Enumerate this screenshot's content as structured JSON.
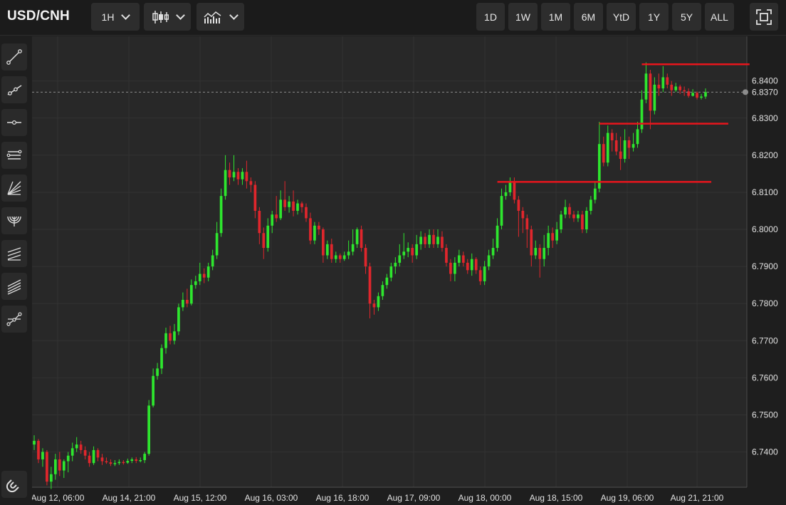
{
  "header": {
    "symbol": "USD/CNH",
    "interval_label": "1H",
    "chart_style_icon": "candlestick-icon",
    "indicators_icon": "indicators-icon",
    "ranges": [
      "1D",
      "1W",
      "1M",
      "6M",
      "YtD",
      "1Y",
      "5Y",
      "ALL"
    ],
    "fullscreen_icon": "fullscreen-icon"
  },
  "toolbar": {
    "tools": [
      {
        "name": "trend-line-icon"
      },
      {
        "name": "ray-icon"
      },
      {
        "name": "horizontal-line-icon"
      },
      {
        "name": "parallel-channel-icon"
      },
      {
        "name": "fan-icon"
      },
      {
        "name": "arc-icon"
      },
      {
        "name": "pitchfork-icon"
      },
      {
        "name": "regression-channel-icon"
      },
      {
        "name": "polyline-icon"
      }
    ],
    "magnet_icon": "magnet-icon"
  },
  "colors": {
    "up": "#2ee62e",
    "down": "#e0262c",
    "level_line": "#e8151c",
    "grid": "#323232",
    "background": "#282828",
    "axis_text": "#e0e0e0",
    "last_price_line": "#8a8a8a"
  },
  "chart_data": {
    "type": "candlestick",
    "title": "USD/CNH",
    "y_ticks": [
      "6.8400",
      "6.8300",
      "6.8200",
      "6.8100",
      "6.8000",
      "6.7900",
      "6.7800",
      "6.7700",
      "6.7600",
      "6.7500",
      "6.7400"
    ],
    "y_range": [
      6.7305,
      6.8505
    ],
    "x_ticks": [
      "Aug 12, 06:00",
      "Aug 14, 21:00",
      "Aug 15, 12:00",
      "Aug 16, 03:00",
      "Aug 16, 18:00",
      "Aug 17, 09:00",
      "Aug 18, 00:00",
      "Aug 18, 15:00",
      "Aug 19, 06:00",
      "Aug 21, 21:00"
    ],
    "last_price": "6.8370",
    "last_price_value": 6.837,
    "horizontal_levels": [
      {
        "value": 6.8445,
        "from_candle": 143,
        "to_candle": 165
      },
      {
        "value": 6.8285,
        "from_candle": 133,
        "to_candle": 160
      },
      {
        "value": 6.8128,
        "from_candle": 109,
        "to_candle": 156
      }
    ],
    "candles": [
      [
        6.742,
        6.743,
        6.7445,
        6.7405
      ],
      [
        6.743,
        6.738,
        6.7435,
        6.737
      ],
      [
        6.738,
        6.74,
        6.741,
        6.736
      ],
      [
        6.74,
        6.732,
        6.7405,
        6.731
      ],
      [
        6.732,
        6.734,
        6.736,
        6.73
      ],
      [
        6.734,
        6.738,
        6.7395,
        6.7325
      ],
      [
        6.738,
        6.735,
        6.74,
        6.7335
      ],
      [
        6.735,
        6.7375,
        6.738,
        6.733
      ],
      [
        6.7375,
        6.739,
        6.74,
        6.7345
      ],
      [
        6.739,
        6.741,
        6.7425,
        6.7375
      ],
      [
        6.741,
        6.742,
        6.744,
        6.74
      ],
      [
        6.742,
        6.7405,
        6.743,
        6.7395
      ],
      [
        6.7405,
        6.739,
        6.7415,
        6.738
      ],
      [
        6.739,
        6.737,
        6.74,
        6.736
      ],
      [
        6.737,
        6.7405,
        6.7415,
        6.7365
      ],
      [
        6.7405,
        6.7385,
        6.741,
        6.7375
      ],
      [
        6.7385,
        6.7375,
        6.7395,
        6.7365
      ],
      [
        6.7375,
        6.7372,
        6.7385,
        6.7368
      ],
      [
        6.7372,
        6.7368,
        6.738,
        6.7362
      ],
      [
        6.7368,
        6.737,
        6.7378,
        6.7362
      ],
      [
        6.737,
        6.7373,
        6.738,
        6.7365
      ],
      [
        6.7373,
        6.7371,
        6.7378,
        6.7366
      ],
      [
        6.7371,
        6.7376,
        6.7382,
        6.7368
      ],
      [
        6.7376,
        6.738,
        6.7385,
        6.737
      ],
      [
        6.738,
        6.7376,
        6.7386,
        6.737
      ],
      [
        6.7376,
        6.7378,
        6.7385,
        6.7372
      ],
      [
        6.7378,
        6.7395,
        6.74,
        6.737
      ],
      [
        6.7395,
        6.7525,
        6.754,
        6.739
      ],
      [
        6.7525,
        6.7605,
        6.7625,
        6.752
      ],
      [
        6.7605,
        6.7625,
        6.764,
        6.7595
      ],
      [
        6.7625,
        6.768,
        6.769,
        6.761
      ],
      [
        6.768,
        6.772,
        6.7735,
        6.7665
      ],
      [
        6.772,
        6.77,
        6.774,
        6.769
      ],
      [
        6.77,
        6.7725,
        6.7745,
        6.769
      ],
      [
        6.7725,
        6.779,
        6.78,
        6.7715
      ],
      [
        6.779,
        6.781,
        6.783,
        6.778
      ],
      [
        6.781,
        6.78,
        6.784,
        6.779
      ],
      [
        6.78,
        6.785,
        6.7865,
        6.7795
      ],
      [
        6.785,
        6.786,
        6.7875,
        6.784
      ],
      [
        6.786,
        6.788,
        6.791,
        6.785
      ],
      [
        6.788,
        6.787,
        6.7895,
        6.7855
      ],
      [
        6.787,
        6.79,
        6.791,
        6.786
      ],
      [
        6.79,
        6.793,
        6.7945,
        6.789
      ],
      [
        6.793,
        6.799,
        6.802,
        6.792
      ],
      [
        6.799,
        6.809,
        6.811,
        6.798
      ],
      [
        6.809,
        6.816,
        6.82,
        6.808
      ],
      [
        6.816,
        6.814,
        6.818,
        6.812
      ],
      [
        6.814,
        6.8155,
        6.82,
        6.813
      ],
      [
        6.8155,
        6.8135,
        6.8165,
        6.812
      ],
      [
        6.8135,
        6.8155,
        6.8165,
        6.812
      ],
      [
        6.8155,
        6.813,
        6.8185,
        6.811
      ],
      [
        6.813,
        6.812,
        6.814,
        6.81
      ],
      [
        6.812,
        6.805,
        6.813,
        6.803
      ],
      [
        6.805,
        6.799,
        6.806,
        6.796
      ],
      [
        6.799,
        6.795,
        6.8005,
        6.792
      ],
      [
        6.795,
        6.801,
        6.803,
        6.794
      ],
      [
        6.801,
        6.804,
        6.805,
        6.799
      ],
      [
        6.804,
        6.803,
        6.809,
        6.802
      ],
      [
        6.803,
        6.808,
        6.8105,
        6.8025
      ],
      [
        6.808,
        6.806,
        6.813,
        6.805
      ],
      [
        6.806,
        6.8075,
        6.809,
        6.8045
      ],
      [
        6.8075,
        6.805,
        6.8105,
        6.8035
      ],
      [
        6.805,
        6.807,
        6.808,
        6.804
      ],
      [
        6.807,
        6.806,
        6.8075,
        6.8045
      ],
      [
        6.806,
        6.803,
        6.807,
        6.802
      ],
      [
        6.803,
        6.797,
        6.8045,
        6.796
      ],
      [
        6.797,
        6.801,
        6.802,
        6.796
      ],
      [
        6.801,
        6.8,
        6.802,
        6.7985
      ],
      [
        6.8,
        6.793,
        6.8005,
        6.791
      ],
      [
        6.793,
        6.796,
        6.797,
        6.792
      ],
      [
        6.796,
        6.792,
        6.7975,
        6.791
      ],
      [
        6.792,
        6.793,
        6.794,
        6.791
      ],
      [
        6.793,
        6.792,
        6.7935,
        6.791
      ],
      [
        6.792,
        6.793,
        6.794,
        6.7915
      ],
      [
        6.793,
        6.794,
        6.797,
        6.792
      ],
      [
        6.794,
        6.796,
        6.8,
        6.793
      ],
      [
        6.796,
        6.8,
        6.8005,
        6.795
      ],
      [
        6.8,
        6.795,
        6.801,
        6.794
      ],
      [
        6.795,
        6.79,
        6.796,
        6.788
      ],
      [
        6.79,
        6.78,
        6.791,
        6.776
      ],
      [
        6.78,
        6.779,
        6.781,
        6.777
      ],
      [
        6.779,
        6.782,
        6.783,
        6.778
      ],
      [
        6.782,
        6.785,
        6.786,
        6.781
      ],
      [
        6.785,
        6.787,
        6.788,
        6.784
      ],
      [
        6.787,
        6.79,
        6.791,
        6.786
      ],
      [
        6.79,
        6.791,
        6.7925,
        6.788
      ],
      [
        6.791,
        6.793,
        6.796,
        6.79
      ],
      [
        6.793,
        6.794,
        6.799,
        6.792
      ],
      [
        6.794,
        6.795,
        6.7965,
        6.7925
      ],
      [
        6.795,
        6.793,
        6.796,
        6.791
      ],
      [
        6.793,
        6.796,
        6.7985,
        6.792
      ],
      [
        6.796,
        6.798,
        6.7995,
        6.7945
      ],
      [
        6.798,
        6.796,
        6.799,
        6.795
      ],
      [
        6.796,
        6.7985,
        6.8,
        6.795
      ],
      [
        6.7985,
        6.796,
        6.8,
        6.795
      ],
      [
        6.796,
        6.798,
        6.8,
        6.795
      ],
      [
        6.798,
        6.795,
        6.7995,
        6.794
      ],
      [
        6.795,
        6.791,
        6.796,
        6.79
      ],
      [
        6.791,
        6.788,
        6.792,
        6.786
      ],
      [
        6.788,
        6.791,
        6.7925,
        6.786
      ],
      [
        6.791,
        6.793,
        6.7945,
        6.79
      ],
      [
        6.793,
        6.791,
        6.794,
        6.79
      ],
      [
        6.791,
        6.789,
        6.792,
        6.788
      ],
      [
        6.789,
        6.792,
        6.7935,
        6.7875
      ],
      [
        6.792,
        6.789,
        6.7925,
        6.788
      ],
      [
        6.789,
        6.786,
        6.79,
        6.785
      ],
      [
        6.786,
        6.79,
        6.7915,
        6.785
      ],
      [
        6.79,
        6.793,
        6.7945,
        6.789
      ],
      [
        6.793,
        6.795,
        6.7975,
        6.792
      ],
      [
        6.795,
        6.801,
        6.803,
        6.794
      ],
      [
        6.801,
        6.809,
        6.811,
        6.8
      ],
      [
        6.809,
        6.81,
        6.812,
        6.808
      ],
      [
        6.81,
        6.813,
        6.814,
        6.809
      ],
      [
        6.813,
        6.808,
        6.814,
        6.807
      ],
      [
        6.808,
        6.805,
        6.809,
        6.798
      ],
      [
        6.805,
        6.803,
        6.806,
        6.799
      ],
      [
        6.803,
        6.8,
        6.804,
        6.795
      ],
      [
        6.8,
        6.793,
        6.801,
        6.79
      ],
      [
        6.793,
        6.795,
        6.797,
        6.792
      ],
      [
        6.795,
        6.792,
        6.796,
        6.787
      ],
      [
        6.792,
        6.795,
        6.7985,
        6.79
      ],
      [
        6.795,
        6.799,
        6.801,
        6.793
      ],
      [
        6.799,
        6.797,
        6.8005,
        6.795
      ],
      [
        6.797,
        6.8,
        6.802,
        6.796
      ],
      [
        6.8,
        6.804,
        6.805,
        6.799
      ],
      [
        6.804,
        6.806,
        6.808,
        6.803
      ],
      [
        6.806,
        6.804,
        6.807,
        6.803
      ],
      [
        6.804,
        6.803,
        6.805,
        6.802
      ],
      [
        6.803,
        6.804,
        6.805,
        6.802
      ],
      [
        6.804,
        6.8,
        6.805,
        6.799
      ],
      [
        6.8,
        6.805,
        6.806,
        6.799
      ],
      [
        6.805,
        6.808,
        6.809,
        6.804
      ],
      [
        6.808,
        6.811,
        6.813,
        6.807
      ],
      [
        6.811,
        6.823,
        6.829,
        6.81
      ],
      [
        6.823,
        6.818,
        6.825,
        6.817
      ],
      [
        6.818,
        6.826,
        6.828,
        6.817
      ],
      [
        6.826,
        6.824,
        6.827,
        6.821
      ],
      [
        6.824,
        6.821,
        6.826,
        6.82
      ],
      [
        6.821,
        6.819,
        6.825,
        6.816
      ],
      [
        6.819,
        6.824,
        6.827,
        6.818
      ],
      [
        6.824,
        6.822,
        6.825,
        6.819
      ],
      [
        6.822,
        6.823,
        6.826,
        6.821
      ],
      [
        6.823,
        6.827,
        6.829,
        6.822
      ],
      [
        6.827,
        6.835,
        6.8375,
        6.826
      ],
      [
        6.835,
        6.842,
        6.845,
        6.834
      ],
      [
        6.842,
        6.832,
        6.843,
        6.827
      ],
      [
        6.832,
        6.839,
        6.841,
        6.831
      ],
      [
        6.839,
        6.838,
        6.842,
        6.836
      ],
      [
        6.838,
        6.841,
        6.844,
        6.837
      ],
      [
        6.841,
        6.839,
        6.842,
        6.838
      ],
      [
        6.839,
        6.8375,
        6.84,
        6.836
      ],
      [
        6.8375,
        6.8385,
        6.8395,
        6.837
      ],
      [
        6.8385,
        6.8375,
        6.839,
        6.8365
      ],
      [
        6.8375,
        6.8372,
        6.8385,
        6.836
      ],
      [
        6.8372,
        6.836,
        6.838,
        6.8355
      ],
      [
        6.836,
        6.8368,
        6.8378,
        6.8358
      ],
      [
        6.8368,
        6.8355,
        6.8372,
        6.835
      ],
      [
        6.8355,
        6.8358,
        6.8365,
        6.835
      ],
      [
        6.8358,
        6.837,
        6.838,
        6.8352
      ]
    ]
  }
}
